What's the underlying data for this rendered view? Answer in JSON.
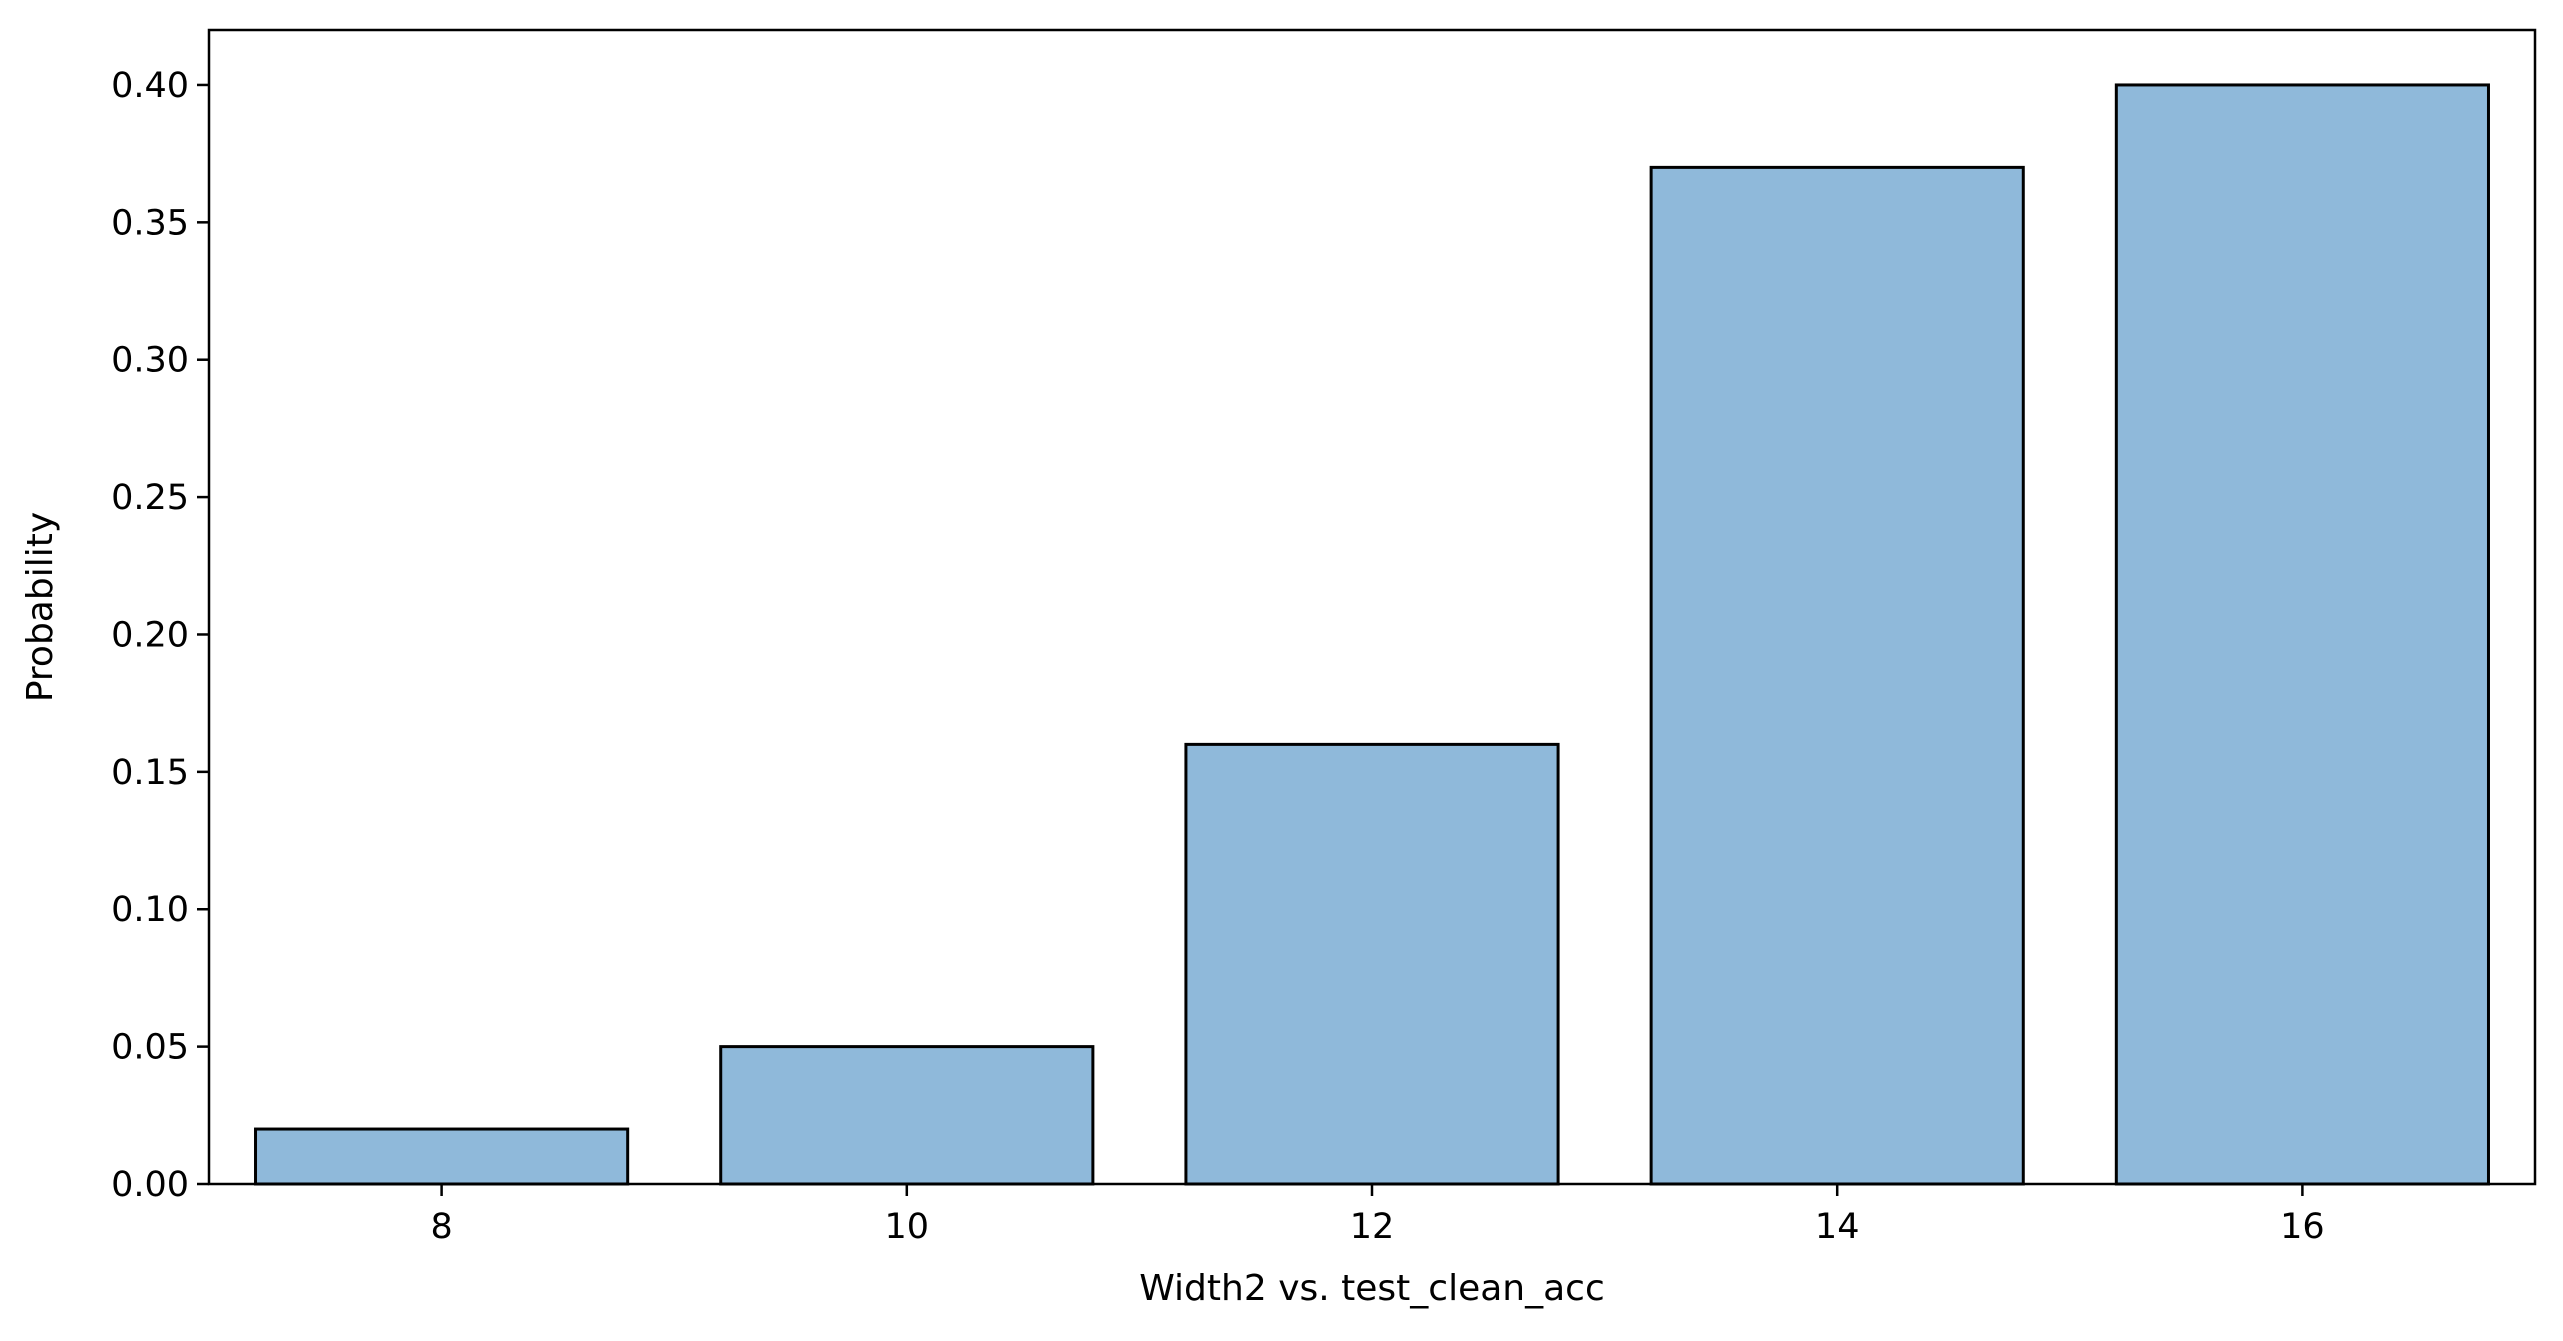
{
  "chart_data": {
    "type": "bar",
    "title": "",
    "xlabel": "Width2 vs. test_clean_acc",
    "ylabel": "Probability",
    "categories": [
      "8",
      "10",
      "12",
      "14",
      "16"
    ],
    "values": [
      0.02,
      0.05,
      0.16,
      0.37,
      0.4
    ],
    "ylim": [
      0,
      0.42
    ],
    "yticks": [
      "0.00",
      "0.05",
      "0.10",
      "0.15",
      "0.20",
      "0.25",
      "0.30",
      "0.35",
      "0.40"
    ],
    "grid": false,
    "legend": "none",
    "colors": {
      "bar_fill": "#8fb9da",
      "bar_edge": "#000000",
      "axis": "#000000"
    }
  }
}
